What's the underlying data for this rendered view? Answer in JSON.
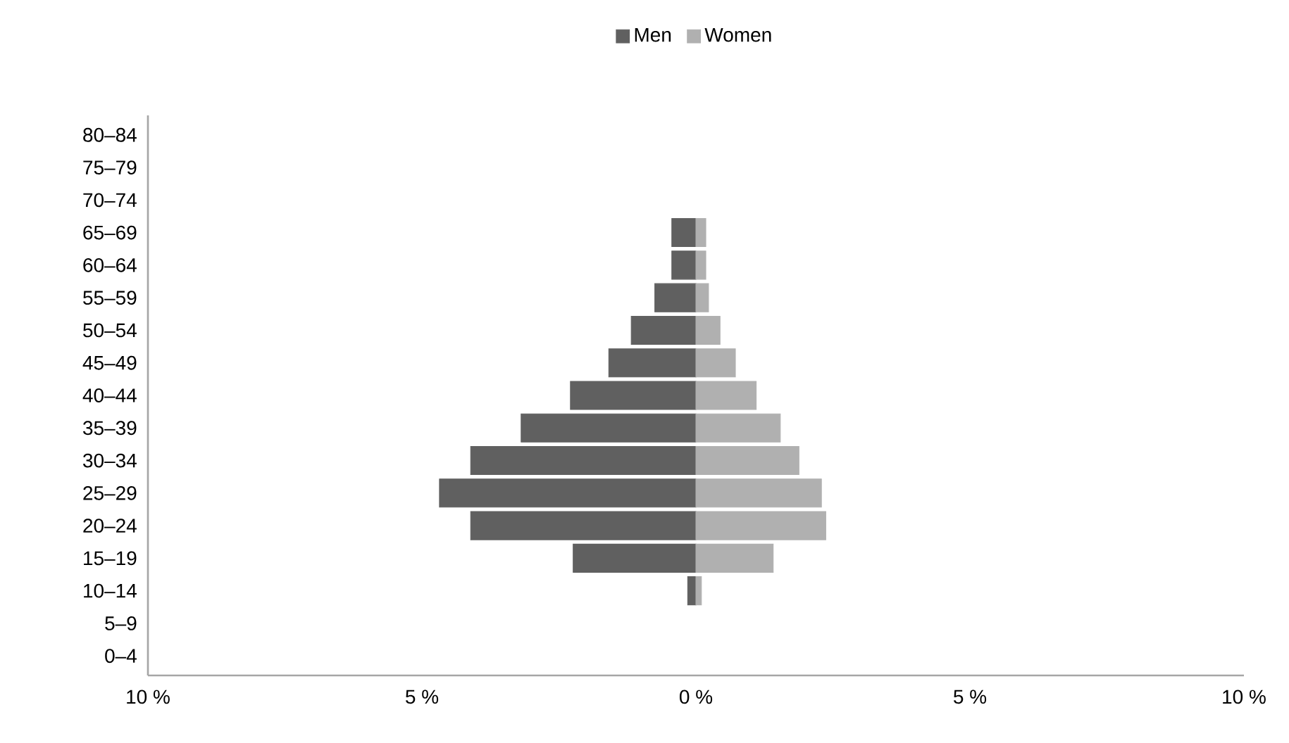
{
  "chart_data": {
    "type": "bar",
    "orientation": "horizontal",
    "stacked": true,
    "legend": "top",
    "categories": [
      "80–84",
      "75–79",
      "70–74",
      "65–69",
      "60–64",
      "55–59",
      "50–54",
      "45–49",
      "40–44",
      "35–39",
      "30–34",
      "25–29",
      "20–24",
      "15–19",
      "10–14",
      "5–9",
      "0–4"
    ],
    "series": [
      {
        "name": "Men",
        "color": "#606060",
        "values": [
          null,
          null,
          null,
          -0.44,
          -0.44,
          -0.75,
          -1.18,
          -1.59,
          -2.29,
          -3.19,
          -4.11,
          -4.68,
          -4.11,
          -2.24,
          -0.15,
          null,
          null
        ]
      },
      {
        "name": "Women",
        "color": "#b0b0b0",
        "values": [
          null,
          null,
          null,
          0.18,
          0.18,
          0.23,
          0.44,
          0.72,
          1.1,
          1.54,
          1.88,
          2.29,
          2.37,
          1.41,
          0.1,
          null,
          null
        ]
      }
    ],
    "xlim": [
      -10,
      10
    ],
    "xticks": [
      {
        "value": -10,
        "label": "10 %"
      },
      {
        "value": -5,
        "label": "5 %"
      },
      {
        "value": 0,
        "label": "0 %"
      },
      {
        "value": 5,
        "label": "5 %"
      },
      {
        "value": 10,
        "label": "10 %"
      }
    ]
  }
}
